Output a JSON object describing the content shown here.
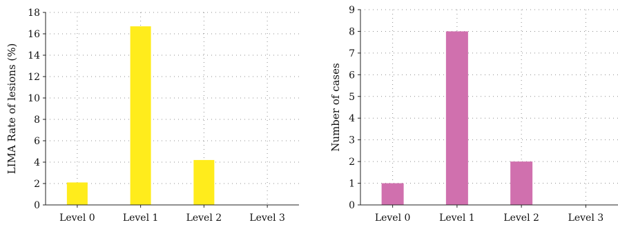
{
  "chart_data": [
    {
      "type": "bar",
      "categories": [
        "Level 0",
        "Level 1",
        "Level 2",
        "Level 3"
      ],
      "values": [
        2.1,
        16.7,
        4.2,
        0
      ],
      "ylabel": "LIMA Rate of lesions (%)",
      "ylim": [
        0,
        18
      ],
      "yticks": [
        0,
        2,
        4,
        6,
        8,
        10,
        12,
        14,
        16,
        18
      ],
      "grid": true,
      "color": "#ffec1c"
    },
    {
      "type": "bar",
      "categories": [
        "Level 0",
        "Level 1",
        "Level 2",
        "Level 3"
      ],
      "values": [
        1,
        8,
        2,
        0
      ],
      "ylabel": "Number of cases",
      "ylim": [
        0,
        9
      ],
      "yticks": [
        0,
        1,
        2,
        3,
        4,
        5,
        6,
        7,
        8,
        9
      ],
      "grid": true,
      "color": "#d070ae"
    }
  ]
}
